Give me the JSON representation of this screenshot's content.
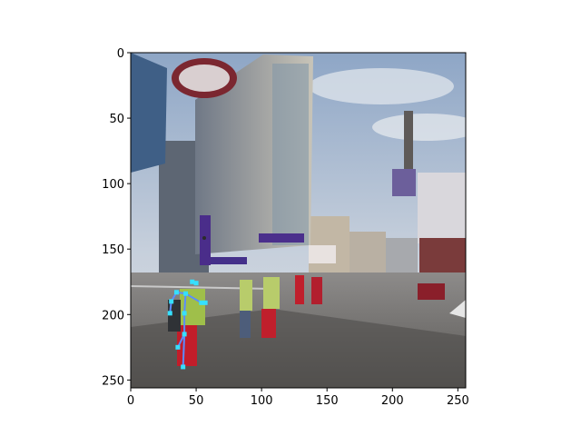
{
  "chart_data": {
    "type": "image",
    "xlim": [
      0,
      256
    ],
    "ylim": [
      256,
      0
    ],
    "x_ticks": [
      0,
      50,
      100,
      150,
      200,
      250
    ],
    "y_ticks": [
      0,
      50,
      100,
      150,
      200,
      250
    ],
    "grid": false,
    "image_description": "street scene photo with buildings, purple shop signs, and pedestrians crossing",
    "pose_overlay": {
      "color_points": "#36e0ff",
      "color_lines": "#5b8cff",
      "keypoints": [
        [
          47,
          175
        ],
        [
          50,
          176
        ],
        [
          35,
          183
        ],
        [
          42,
          184
        ],
        [
          31,
          190
        ],
        [
          54,
          191
        ],
        [
          30,
          199
        ],
        [
          41,
          199
        ],
        [
          57,
          191
        ],
        [
          41,
          215
        ],
        [
          36,
          225
        ],
        [
          40,
          240
        ]
      ],
      "bones": [
        [
          0,
          1
        ],
        [
          2,
          3
        ],
        [
          2,
          4
        ],
        [
          3,
          5
        ],
        [
          4,
          6
        ],
        [
          3,
          7
        ],
        [
          5,
          8
        ],
        [
          7,
          9
        ],
        [
          9,
          10
        ],
        [
          9,
          11
        ]
      ]
    }
  }
}
